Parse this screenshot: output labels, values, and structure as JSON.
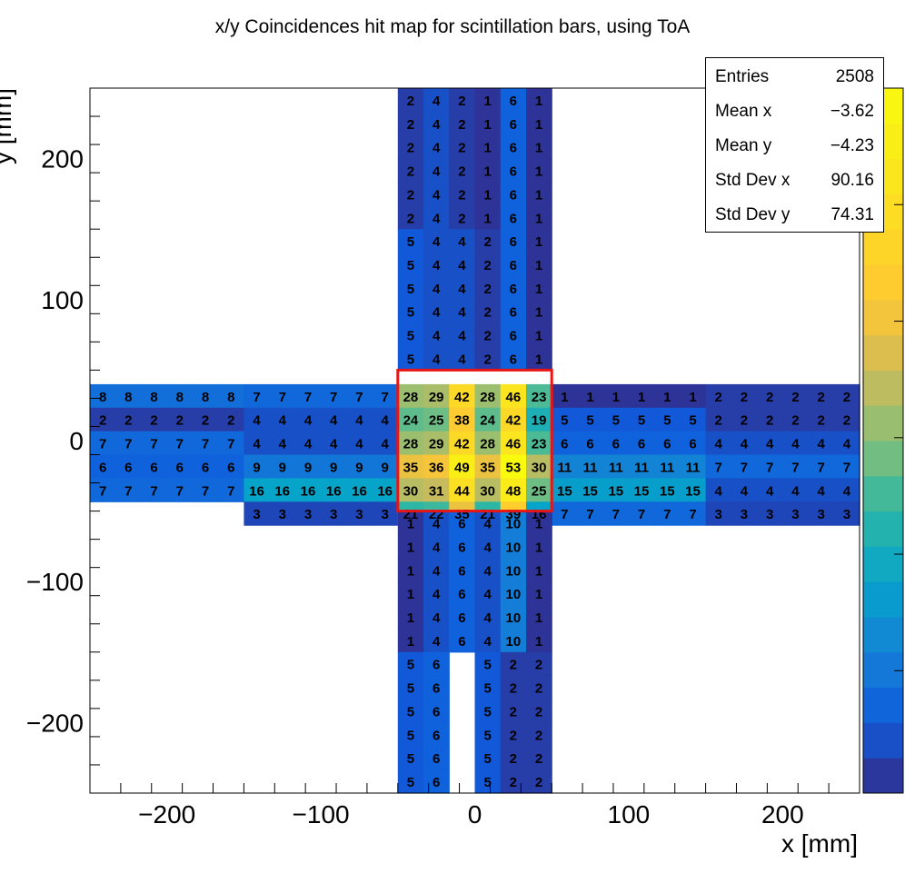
{
  "chart_data": {
    "type": "heatmap",
    "title": "x/y Coincidences hit map for scintillation bars, using ToA",
    "xlabel": "x [mm]",
    "ylabel": "y [mm]",
    "xlim": [
      -250,
      250
    ],
    "ylim": [
      -250,
      250
    ],
    "x_ticks": [
      -200,
      -100,
      0,
      100,
      200
    ],
    "y_ticks": [
      -200,
      -100,
      0,
      100,
      200
    ],
    "z_range": [
      0,
      53
    ],
    "colormap": "kBird",
    "highlight_box": {
      "x": [
        -50,
        50
      ],
      "y": [
        -50,
        50
      ],
      "color": "#e81515"
    },
    "cell_size": [
      16.667,
      16.667
    ],
    "horizontal_arm": {
      "x_start": -250,
      "y_rows_top": [
        40,
        23.333,
        6.667,
        -10,
        -26.667,
        -43.333
      ],
      "rows": [
        [
          8,
          8,
          8,
          8,
          8,
          8,
          7,
          7,
          7,
          7,
          7,
          7,
          28,
          29,
          42,
          28,
          46,
          23,
          1,
          1,
          1,
          1,
          1,
          1,
          2,
          2,
          2,
          2,
          2,
          2
        ],
        [
          2,
          2,
          2,
          2,
          2,
          2,
          4,
          4,
          4,
          4,
          4,
          4,
          24,
          25,
          38,
          24,
          42,
          19,
          5,
          5,
          5,
          5,
          5,
          5,
          2,
          2,
          2,
          2,
          2,
          2
        ],
        [
          7,
          7,
          7,
          7,
          7,
          7,
          4,
          4,
          4,
          4,
          4,
          4,
          28,
          29,
          42,
          28,
          46,
          23,
          6,
          6,
          6,
          6,
          6,
          6,
          4,
          4,
          4,
          4,
          4,
          4
        ],
        [
          6,
          6,
          6,
          6,
          6,
          6,
          9,
          9,
          9,
          9,
          9,
          9,
          35,
          36,
          49,
          35,
          53,
          30,
          11,
          11,
          11,
          11,
          11,
          11,
          7,
          7,
          7,
          7,
          7,
          7
        ],
        [
          7,
          7,
          7,
          7,
          7,
          7,
          16,
          16,
          16,
          16,
          16,
          16,
          30,
          31,
          44,
          30,
          48,
          25,
          15,
          15,
          15,
          15,
          15,
          15,
          4,
          4,
          4,
          4,
          4,
          4
        ],
        [
          null,
          null,
          null,
          null,
          null,
          null,
          3,
          3,
          3,
          3,
          3,
          3,
          21,
          22,
          35,
          21,
          39,
          16,
          7,
          7,
          7,
          7,
          7,
          7,
          3,
          3,
          3,
          3,
          3,
          3
        ]
      ]
    },
    "vertical_arm": {
      "x_start": -50,
      "rows_top": [
        {
          "y": 250,
          "values": [
            2,
            4,
            2,
            1,
            6,
            1
          ]
        },
        {
          "y": 233.333,
          "values": [
            2,
            4,
            2,
            1,
            6,
            1
          ]
        },
        {
          "y": 216.667,
          "values": [
            2,
            4,
            2,
            1,
            6,
            1
          ]
        },
        {
          "y": 200,
          "values": [
            2,
            4,
            2,
            1,
            6,
            1
          ]
        },
        {
          "y": 183.333,
          "values": [
            2,
            4,
            2,
            1,
            6,
            1
          ]
        },
        {
          "y": 166.667,
          "values": [
            2,
            4,
            2,
            1,
            6,
            1
          ]
        },
        {
          "y": 150,
          "values": [
            5,
            4,
            4,
            2,
            6,
            1
          ]
        },
        {
          "y": 133.333,
          "values": [
            5,
            4,
            4,
            2,
            6,
            1
          ]
        },
        {
          "y": 116.667,
          "values": [
            5,
            4,
            4,
            2,
            6,
            1
          ]
        },
        {
          "y": 100,
          "values": [
            5,
            4,
            4,
            2,
            6,
            1
          ]
        },
        {
          "y": 83.333,
          "values": [
            5,
            4,
            4,
            2,
            6,
            1
          ]
        },
        {
          "y": 66.667,
          "values": [
            5,
            4,
            4,
            2,
            6,
            1
          ]
        },
        {
          "y": -50,
          "values": [
            1,
            4,
            6,
            4,
            10,
            1
          ]
        },
        {
          "y": -66.667,
          "values": [
            1,
            4,
            6,
            4,
            10,
            1
          ]
        },
        {
          "y": -83.333,
          "values": [
            1,
            4,
            6,
            4,
            10,
            1
          ]
        },
        {
          "y": -100,
          "values": [
            1,
            4,
            6,
            4,
            10,
            1
          ]
        },
        {
          "y": -116.667,
          "values": [
            1,
            4,
            6,
            4,
            10,
            1
          ]
        },
        {
          "y": -133.333,
          "values": [
            1,
            4,
            6,
            4,
            10,
            1
          ]
        },
        {
          "y": -150,
          "values": [
            5,
            6,
            null,
            5,
            2,
            2
          ]
        },
        {
          "y": -166.667,
          "values": [
            5,
            6,
            null,
            5,
            2,
            2
          ]
        },
        {
          "y": -183.333,
          "values": [
            5,
            6,
            null,
            5,
            2,
            2
          ]
        },
        {
          "y": -200,
          "values": [
            5,
            6,
            null,
            5,
            2,
            2
          ]
        },
        {
          "y": -216.667,
          "values": [
            5,
            6,
            null,
            5,
            2,
            2
          ]
        },
        {
          "y": -233.333,
          "values": [
            5,
            6,
            null,
            5,
            2,
            2
          ]
        }
      ]
    }
  },
  "stats": [
    {
      "label": "Entries",
      "value": "2508"
    },
    {
      "label": "Mean x",
      "value": "−3.62"
    },
    {
      "label": "Mean y",
      "value": "−4.23"
    },
    {
      "label": "Std Dev x",
      "value": "90.16"
    },
    {
      "label": "Std Dev y",
      "value": "74.31"
    }
  ]
}
